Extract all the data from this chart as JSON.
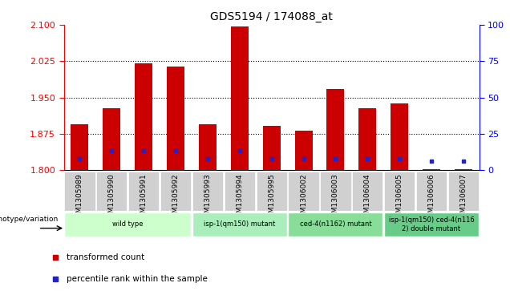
{
  "title": "GDS5194 / 174088_at",
  "samples": [
    "GSM1305989",
    "GSM1305990",
    "GSM1305991",
    "GSM1305992",
    "GSM1305993",
    "GSM1305994",
    "GSM1305995",
    "GSM1306002",
    "GSM1306003",
    "GSM1306004",
    "GSM1306005",
    "GSM1306006",
    "GSM1306007"
  ],
  "bar_tops": [
    1.895,
    1.928,
    2.02,
    2.013,
    1.895,
    2.096,
    1.892,
    1.882,
    1.968,
    1.928,
    1.938,
    1.803,
    1.803
  ],
  "bar_base": 1.8,
  "blue_dot_y": [
    1.823,
    1.84,
    1.84,
    1.84,
    1.823,
    1.84,
    1.823,
    1.823,
    1.823,
    1.823,
    1.823,
    1.818,
    1.818
  ],
  "ylim_left": [
    1.8,
    2.1
  ],
  "ylim_right": [
    0,
    100
  ],
  "yticks_left": [
    1.8,
    1.875,
    1.95,
    2.025,
    2.1
  ],
  "yticks_right": [
    0,
    25,
    50,
    75,
    100
  ],
  "bar_color": "#cc0000",
  "blue_color": "#2222cc",
  "genotype_groups": [
    {
      "label": "wild type",
      "start": 0,
      "end": 4,
      "color": "#ccffcc"
    },
    {
      "label": "isp-1(qm150) mutant",
      "start": 4,
      "end": 7,
      "color": "#aaeebb"
    },
    {
      "label": "ced-4(n1162) mutant",
      "start": 7,
      "end": 10,
      "color": "#88dd99"
    },
    {
      "label": "isp-1(qm150) ced-4(n116\n2) double mutant",
      "start": 10,
      "end": 13,
      "color": "#66cc88"
    }
  ],
  "tick_bg_color": "#d0d0d0",
  "legend_red": "transformed count",
  "legend_blue": "percentile rank within the sample",
  "genotype_label": "genotype/variation"
}
